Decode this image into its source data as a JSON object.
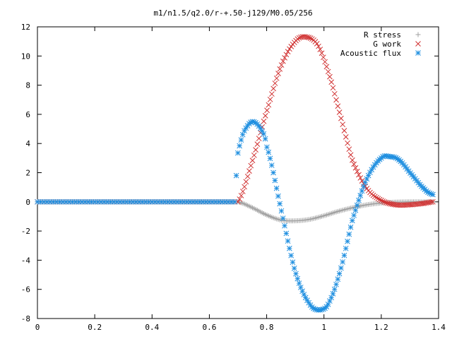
{
  "chart_data": {
    "type": "scatter",
    "title": "m1/n1.5/q2.0/r-+.50-j129/M0.05/256",
    "xlabel": "",
    "ylabel": "",
    "xlim": [
      0,
      1.4
    ],
    "ylim": [
      -8,
      12
    ],
    "xticks": [
      0,
      0.2,
      0.4,
      0.6,
      0.8,
      1,
      1.2,
      1.4
    ],
    "xtick_labels": [
      "0",
      "0.2",
      "0.4",
      "0.6",
      "0.8",
      "1",
      "1.2",
      "1.4"
    ],
    "yticks": [
      -8,
      -6,
      -4,
      -2,
      0,
      2,
      4,
      6,
      8,
      10,
      12
    ],
    "ytick_labels": [
      "-8",
      "-6",
      "-4",
      "-2",
      "0",
      "2",
      "4",
      "6",
      "8",
      "10",
      "12"
    ],
    "grid": false,
    "legend_position": "top-right",
    "series": [
      {
        "name": "R stress",
        "marker": "plus",
        "color": "#a0a0a0",
        "x": [
          0.7,
          0.75,
          0.8,
          0.85,
          0.9,
          0.95,
          1.0,
          1.05,
          1.1,
          1.15,
          1.2,
          1.25,
          1.3,
          1.35,
          1.38
        ],
        "y": [
          0.0,
          -0.4,
          -0.9,
          -1.25,
          -1.3,
          -1.2,
          -0.95,
          -0.65,
          -0.4,
          -0.2,
          -0.08,
          -0.02,
          0.0,
          0.0,
          0.0
        ]
      },
      {
        "name": "G work",
        "marker": "cross",
        "color": "#d03030",
        "x": [
          0.7,
          0.75,
          0.8,
          0.85,
          0.9,
          0.94,
          0.98,
          1.02,
          1.06,
          1.1,
          1.15,
          1.2,
          1.25,
          1.3,
          1.35,
          1.38
        ],
        "y": [
          0.0,
          2.8,
          6.2,
          9.3,
          11.0,
          11.3,
          10.7,
          8.6,
          5.7,
          2.8,
          0.9,
          0.1,
          -0.2,
          -0.2,
          -0.1,
          0.0
        ]
      },
      {
        "name": "Acoustic flux",
        "marker": "star",
        "color": "#1f8fe0",
        "x": [
          0.694,
          0.7,
          0.72,
          0.75,
          0.78,
          0.8,
          0.85,
          0.9,
          0.95,
          0.99,
          1.02,
          1.06,
          1.1,
          1.15,
          1.2,
          1.23,
          1.26,
          1.3,
          1.35,
          1.38
        ],
        "y": [
          1.8,
          3.45,
          4.8,
          5.5,
          5.0,
          3.8,
          -0.5,
          -4.8,
          -7.0,
          -7.4,
          -6.8,
          -4.5,
          -1.2,
          1.6,
          3.0,
          3.1,
          2.9,
          2.0,
          0.9,
          0.5
        ]
      }
    ]
  }
}
